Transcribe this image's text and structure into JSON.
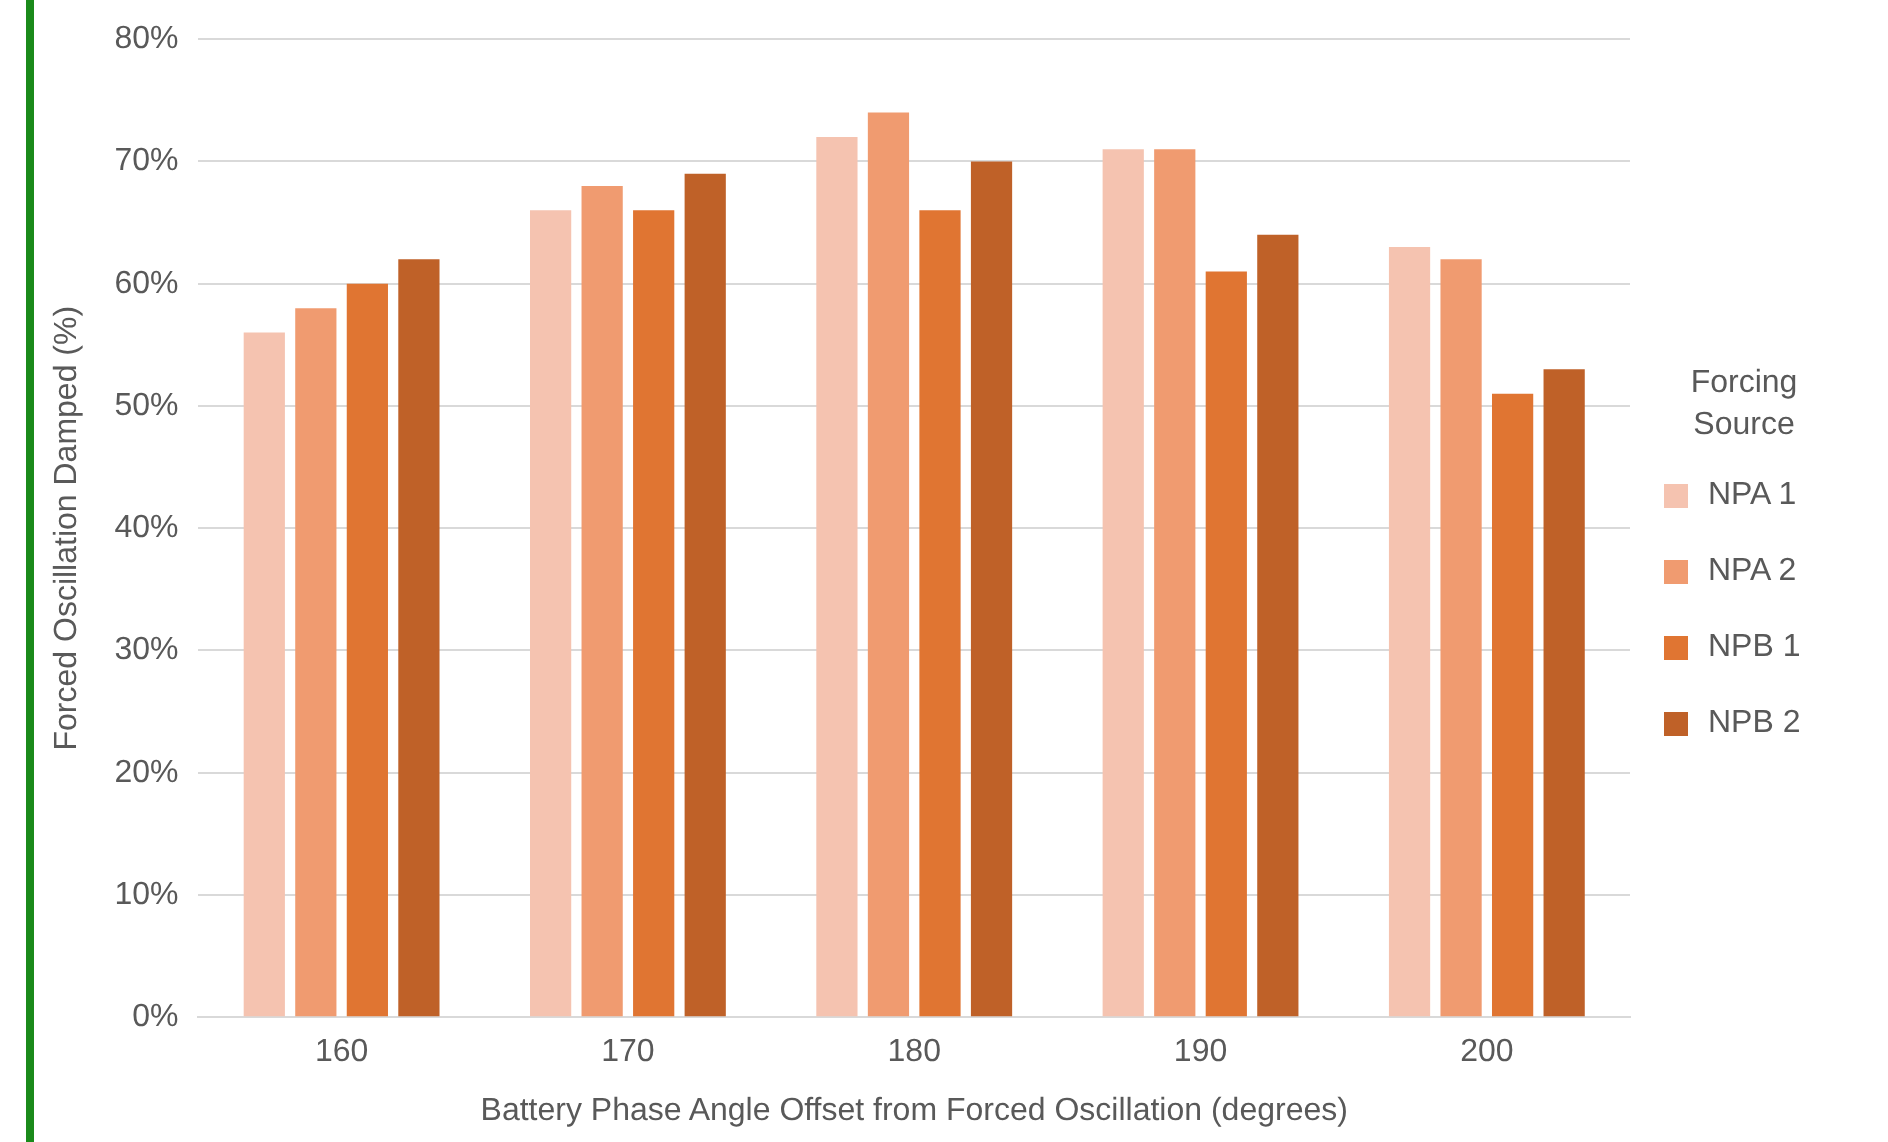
{
  "chart_data": {
    "type": "bar",
    "xlabel": "Battery Phase Angle Offset from Forced Oscillation (degrees)",
    "ylabel": "Forced Oscillation Damped (%)",
    "legend_title": "Forcing Source",
    "legend": "right",
    "categories": [
      "160",
      "170",
      "180",
      "190",
      "200"
    ],
    "series": [
      {
        "name": "NPA 1",
        "color": "#f5c3b0",
        "values": [
          56,
          66,
          72,
          71,
          63
        ]
      },
      {
        "name": "NPA 2",
        "color": "#f09b70",
        "values": [
          58,
          68,
          74,
          71,
          62
        ]
      },
      {
        "name": "NPB 1",
        "color": "#e07532",
        "values": [
          60,
          66,
          66,
          61,
          51
        ]
      },
      {
        "name": "NPB 2",
        "color": "#bf6128",
        "values": [
          62,
          69,
          70,
          64,
          53
        ]
      }
    ],
    "ylim": [
      0,
      80
    ],
    "yticks": [
      {
        "value": 0,
        "label": "0%"
      },
      {
        "value": 10,
        "label": "10%"
      },
      {
        "value": 20,
        "label": "20%"
      },
      {
        "value": 30,
        "label": "30%"
      },
      {
        "value": 40,
        "label": "40%"
      },
      {
        "value": 50,
        "label": "50%"
      },
      {
        "value": 60,
        "label": "60%"
      },
      {
        "value": 70,
        "label": "70%"
      },
      {
        "value": 80,
        "label": "80%"
      }
    ],
    "grid": "y"
  }
}
